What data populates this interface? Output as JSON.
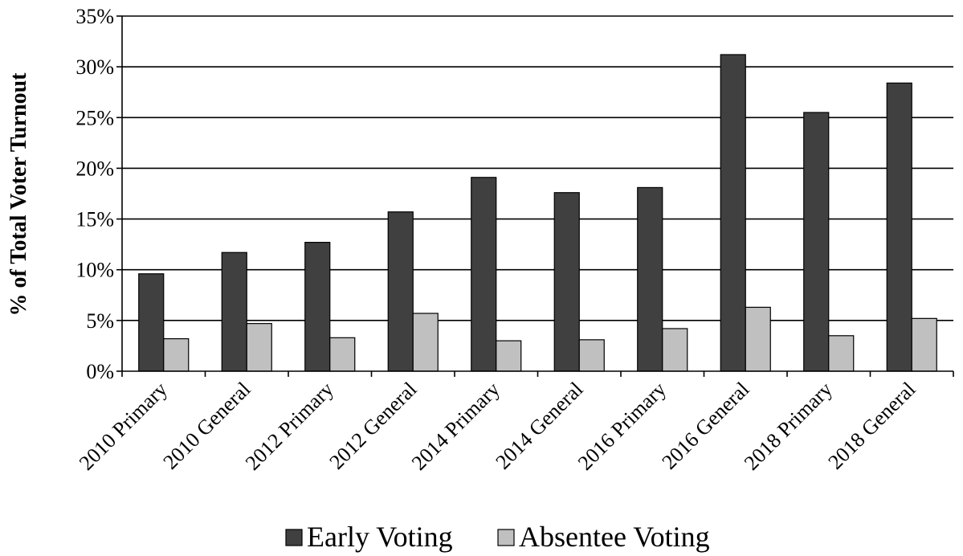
{
  "chart_data": {
    "type": "bar",
    "title": "",
    "xlabel": "",
    "ylabel": "% of Total Voter Turnout",
    "ylim": [
      0,
      35
    ],
    "yticks": [
      "0%",
      "5%",
      "10%",
      "15%",
      "20%",
      "25%",
      "30%",
      "35%"
    ],
    "grid": true,
    "legend_position": "bottom",
    "categories": [
      "2010 Primary",
      "2010 General",
      "2012 Primary",
      "2012 General",
      "2014 Primary",
      "2014 General",
      "2016 Primary",
      "2016 General",
      "2018 Primary",
      "2018 General"
    ],
    "series": [
      {
        "name": "Early Voting",
        "color": "#404040",
        "values": [
          9.6,
          11.7,
          12.7,
          15.7,
          19.1,
          17.6,
          18.1,
          31.2,
          25.5,
          28.4
        ]
      },
      {
        "name": "Absentee Voting",
        "color": "#c0c0c0",
        "values": [
          3.2,
          4.7,
          3.3,
          5.7,
          3.0,
          3.1,
          4.2,
          6.3,
          3.5,
          5.2
        ]
      }
    ]
  }
}
